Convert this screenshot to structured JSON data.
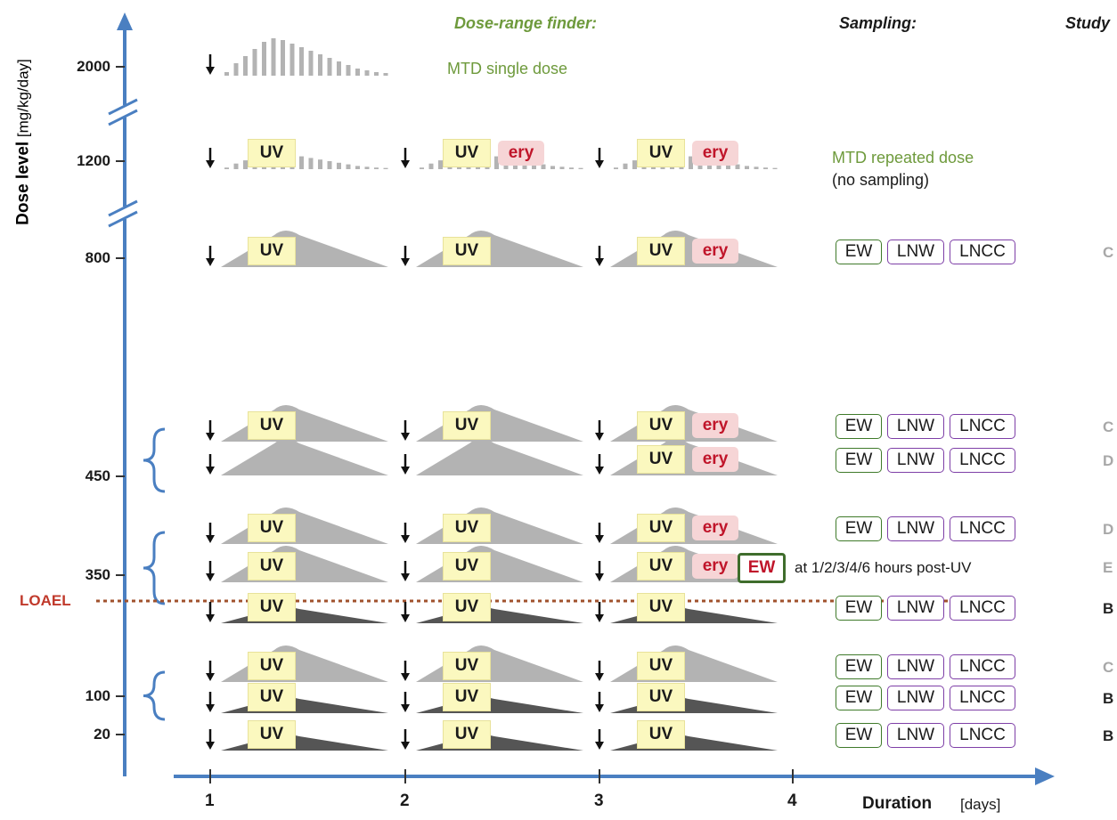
{
  "headers": {
    "dose_range_finder": "Dose-range finder:",
    "sampling": "Sampling:",
    "study": "Study"
  },
  "y_axis": {
    "title": "Dose level",
    "unit": "[mg/kg/day]",
    "ticks": [
      "2000",
      "1200",
      "800",
      "450",
      "350",
      "100",
      "20"
    ],
    "break_marks": 2
  },
  "x_axis": {
    "title": "Duration",
    "unit": "[days]",
    "ticks": [
      "1",
      "2",
      "3",
      "4"
    ]
  },
  "loael_label": "LOAEL",
  "range_finder_notes": {
    "mtd_single": "MTD single dose",
    "mtd_repeated": "MTD repeated dose",
    "no_sampling": "(no sampling)"
  },
  "labels": {
    "uv": "UV",
    "ery": "ery",
    "ew_bold": "EW",
    "ew": "EW",
    "lnw": "LNW",
    "lncc": "LNCC"
  },
  "post_uv_note": "at 1/2/3/4/6 hours post-UV",
  "rows": [
    {
      "dose": "2000",
      "profile": "bars",
      "uv": [
        false,
        false,
        false
      ],
      "ery": [
        false,
        false,
        false
      ],
      "days": 1,
      "note": "mtd_single",
      "study": ""
    },
    {
      "dose": "1200",
      "profile": "bars",
      "uv": [
        true,
        true,
        true
      ],
      "ery": [
        false,
        true,
        true
      ],
      "days": 3,
      "note": "mtd_repeated",
      "study": ""
    },
    {
      "dose": "800",
      "profile": "peak",
      "uv": [
        true,
        true,
        true
      ],
      "ery": [
        false,
        false,
        true
      ],
      "sampling": "standard",
      "study": "C"
    },
    {
      "dose": "450",
      "profile": "peak",
      "uv": [
        true,
        true,
        true
      ],
      "ery": [
        false,
        false,
        true
      ],
      "sampling": "standard",
      "study": "C"
    },
    {
      "dose": "450",
      "profile": "peak",
      "uv": [
        false,
        false,
        true
      ],
      "ery": [
        false,
        false,
        true
      ],
      "sampling": "standard",
      "study": "D"
    },
    {
      "dose": "350",
      "profile": "peak",
      "uv": [
        true,
        true,
        true
      ],
      "ery": [
        false,
        false,
        true
      ],
      "sampling": "standard",
      "study": "D"
    },
    {
      "dose": "350",
      "profile": "peak",
      "uv": [
        true,
        true,
        true
      ],
      "ery": [
        false,
        false,
        true
      ],
      "sampling": "timed",
      "study": "E"
    },
    {
      "dose": "350",
      "profile": "low",
      "uv": [
        true,
        true,
        true
      ],
      "ery": [
        false,
        false,
        false
      ],
      "sampling": "standard",
      "study": "B"
    },
    {
      "dose": "100",
      "profile": "peak",
      "uv": [
        true,
        true,
        true
      ],
      "ery": [
        false,
        false,
        false
      ],
      "sampling": "standard",
      "study": "C"
    },
    {
      "dose": "100",
      "profile": "low",
      "uv": [
        true,
        true,
        true
      ],
      "ery": [
        false,
        false,
        false
      ],
      "sampling": "standard",
      "study": "B"
    },
    {
      "dose": "20",
      "profile": "low",
      "uv": [
        true,
        true,
        true
      ],
      "ery": [
        false,
        false,
        false
      ],
      "sampling": "standard",
      "study": "B"
    }
  ],
  "colors": {
    "axis_blue": "#4a7fc1",
    "green_text": "#6e9a3c",
    "loael_red": "#c0392b",
    "loael_line": "#a0522d",
    "uv_box": "#fbf8bf",
    "ery_bg": "#f6d5d6",
    "ery_text": "#c0152a",
    "profile_light": "#b3b3b3",
    "profile_dark": "#555555",
    "ew_border": "#3f7a2a",
    "ln_border": "#7e3fa7",
    "study_light": "#a8a8a8",
    "study_dark": "#222222"
  }
}
